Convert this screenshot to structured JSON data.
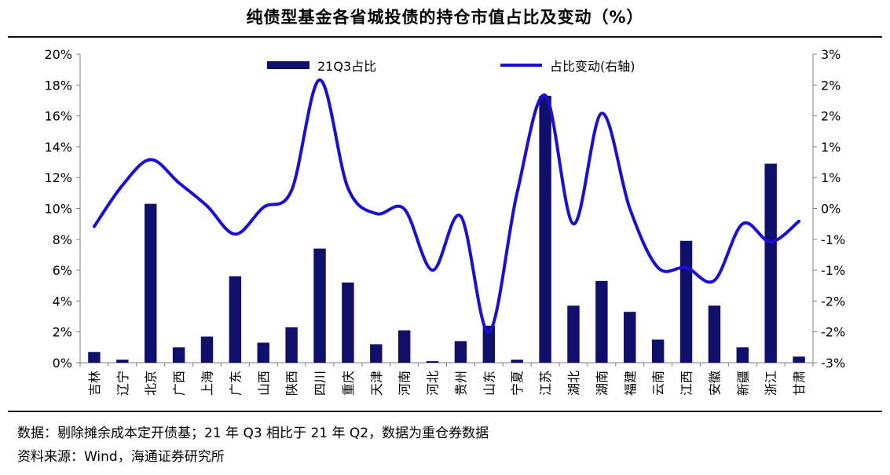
{
  "page": {
    "title": "纯债型基金各省城投债的持仓市值占比及变动（%）"
  },
  "notes": {
    "data_note": "数据：剔除摊余成本定开债基；21 年 Q3 相比于 21 年 Q2，数据为重仓券数据",
    "source": "资料来源：Wind，海通证券研究所"
  },
  "colors": {
    "bar": "#10106a",
    "line": "#1a0fd4",
    "axis": "#808080",
    "text": "#000000"
  },
  "chart_data": {
    "type": "bar",
    "title": "纯债型基金各省城投债的持仓市值占比及变动（%）",
    "categories": [
      "吉林",
      "辽宁",
      "北京",
      "广西",
      "上海",
      "广东",
      "山西",
      "陕西",
      "四川",
      "重庆",
      "天津",
      "河南",
      "河北",
      "贵州",
      "山东",
      "宁夏",
      "江苏",
      "湖北",
      "湖南",
      "福建",
      "云南",
      "江西",
      "安徽",
      "新疆",
      "浙江",
      "甘肃"
    ],
    "left_axis": {
      "ylim": [
        0,
        20
      ],
      "ticks": [
        "0%",
        "2%",
        "4%",
        "6%",
        "8%",
        "10%",
        "12%",
        "14%",
        "16%",
        "18%",
        "20%"
      ]
    },
    "right_axis": {
      "ylim": [
        -3,
        3
      ],
      "ticks": [
        "-3%",
        "-2%",
        "-2%",
        "-1%",
        "-1%",
        "0%",
        "1%",
        "1%",
        "2%",
        "2%",
        "3%"
      ]
    },
    "legend_position": "top",
    "series": [
      {
        "name": "21Q3占比",
        "type": "bar",
        "axis": "left",
        "values": [
          0.7,
          0.2,
          10.3,
          1.0,
          1.7,
          5.6,
          1.3,
          2.3,
          7.4,
          5.2,
          1.2,
          2.1,
          0.1,
          1.4,
          2.4,
          0.2,
          17.3,
          3.7,
          5.3,
          3.3,
          1.5,
          7.9,
          3.7,
          1.0,
          12.9,
          0.4
        ]
      },
      {
        "name": "占比变动(右轴)",
        "type": "line",
        "axis": "right",
        "values": [
          -0.35,
          0.45,
          0.95,
          0.5,
          0.05,
          -0.5,
          0.02,
          0.35,
          2.5,
          0.4,
          -0.1,
          -0.01,
          -1.2,
          -0.15,
          -2.4,
          0.3,
          2.2,
          -0.3,
          1.85,
          0.0,
          -1.15,
          -1.15,
          -1.4,
          -0.3,
          -0.65,
          -0.25
        ]
      }
    ]
  }
}
